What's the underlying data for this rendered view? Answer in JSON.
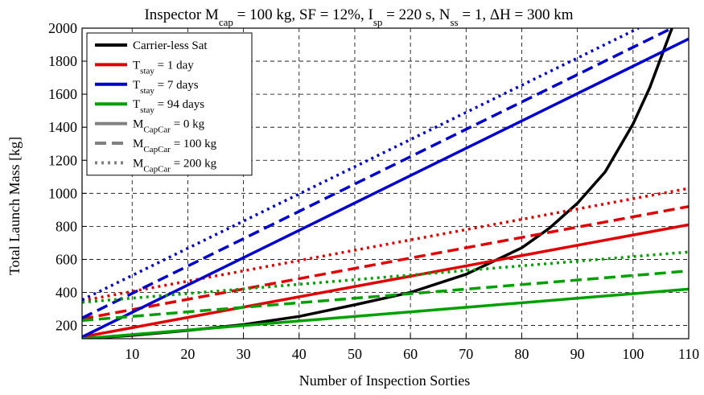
{
  "chart_data": {
    "type": "line",
    "title_parts": [
      {
        "t": "Inspector M"
      },
      {
        "t": "cap",
        "sub": true
      },
      {
        "t": " = 100 kg, SF = 12%, I"
      },
      {
        "t": "sp",
        "sub": true
      },
      {
        "t": " = 220 s, N"
      },
      {
        "t": "ss",
        "sub": true
      },
      {
        "t": " = 1, ΔH = 300 km"
      }
    ],
    "xlabel": "Number of Inspection Sorties",
    "ylabel": "Total Launch Mass [kg]",
    "xlim": [
      1,
      110
    ],
    "ylim": [
      120,
      2000
    ],
    "xticks": [
      10,
      20,
      30,
      40,
      50,
      60,
      70,
      80,
      90,
      100,
      110
    ],
    "yticks": [
      200,
      400,
      600,
      800,
      1000,
      1200,
      1400,
      1600,
      1800,
      2000
    ],
    "grid": true,
    "legend_position": "top-left",
    "legend": [
      {
        "parts": [
          {
            "t": "Carrier-less Sat"
          }
        ],
        "color": "#000000",
        "style": "solid"
      },
      {
        "parts": [
          {
            "t": "T"
          },
          {
            "t": "stay",
            "sub": true
          },
          {
            "t": " = 1 day"
          }
        ],
        "color": "#e00000",
        "style": "solid"
      },
      {
        "parts": [
          {
            "t": "T"
          },
          {
            "t": "stay",
            "sub": true
          },
          {
            "t": " = 7 days"
          }
        ],
        "color": "#0000cc",
        "style": "solid"
      },
      {
        "parts": [
          {
            "t": "T"
          },
          {
            "t": "stay",
            "sub": true
          },
          {
            "t": " = 94 days"
          }
        ],
        "color": "#00a000",
        "style": "solid"
      },
      {
        "parts": [
          {
            "t": "M"
          },
          {
            "t": "CapCar",
            "sub": true
          },
          {
            "t": " = 0 kg"
          }
        ],
        "color": "#808080",
        "style": "solid"
      },
      {
        "parts": [
          {
            "t": "M"
          },
          {
            "t": "CapCar",
            "sub": true
          },
          {
            "t": " = 100 kg"
          }
        ],
        "color": "#808080",
        "style": "dashed"
      },
      {
        "parts": [
          {
            "t": "M"
          },
          {
            "t": "CapCar",
            "sub": true
          },
          {
            "t": " = 200 kg"
          }
        ],
        "color": "#808080",
        "style": "dotted"
      }
    ],
    "series": [
      {
        "name": "Carrier-less Sat",
        "color": "#000000",
        "style": "solid",
        "x": [
          1,
          10,
          20,
          30,
          40,
          50,
          60,
          70,
          80,
          85,
          90,
          95,
          100,
          103,
          105,
          107
        ],
        "y": [
          120,
          140,
          170,
          205,
          255,
          325,
          400,
          510,
          670,
          790,
          940,
          1130,
          1420,
          1640,
          1820,
          2000
        ]
      },
      {
        "color": "#e00000",
        "style": "solid",
        "x": [
          1,
          110
        ],
        "y": [
          130,
          810
        ]
      },
      {
        "color": "#e00000",
        "style": "dashed",
        "x": [
          1,
          110
        ],
        "y": [
          240,
          920
        ]
      },
      {
        "color": "#e00000",
        "style": "dotted",
        "x": [
          1,
          110
        ],
        "y": [
          350,
          1030
        ]
      },
      {
        "color": "#0000cc",
        "style": "solid",
        "x": [
          1,
          110
        ],
        "y": [
          130,
          1935
        ]
      },
      {
        "color": "#0000cc",
        "style": "dashed",
        "x": [
          1,
          107
        ],
        "y": [
          245,
          2000
        ]
      },
      {
        "color": "#0000cc",
        "style": "dotted",
        "x": [
          1,
          101
        ],
        "y": [
          355,
          2000
        ]
      },
      {
        "color": "#00a000",
        "style": "solid",
        "x": [
          1,
          110
        ],
        "y": [
          120,
          420
        ]
      },
      {
        "color": "#00a000",
        "style": "dashed",
        "x": [
          1,
          110
        ],
        "y": [
          230,
          530
        ]
      },
      {
        "color": "#00a000",
        "style": "dotted",
        "x": [
          1,
          110
        ],
        "y": [
          340,
          645
        ]
      }
    ]
  }
}
